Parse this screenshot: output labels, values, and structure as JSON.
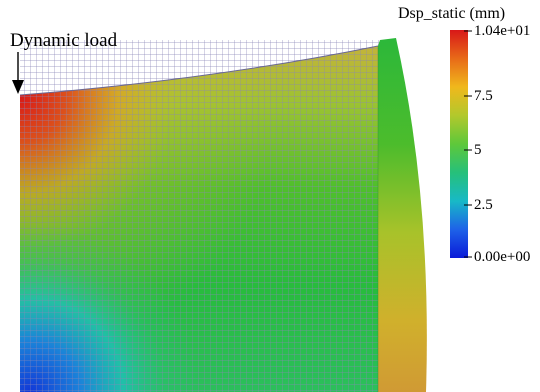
{
  "annotation": {
    "load_label": "Dynamic load"
  },
  "legend": {
    "title": "Dsp_static (mm)",
    "max_label": "1.04e+01",
    "min_label": "0.00e+00",
    "ticks": [
      "7.5",
      "5",
      "2.5"
    ],
    "colors": [
      "#d81818",
      "#e86a18",
      "#f0b81c",
      "#b2c82c",
      "#5ec83a",
      "#26c07a",
      "#18b9c6",
      "#1e62e8",
      "#0a1ad8"
    ]
  },
  "colors": {
    "grid_line": "#8a86b8",
    "high": "#cf1e1e",
    "mid": "#55bc2e",
    "low": "#1444d8"
  }
}
